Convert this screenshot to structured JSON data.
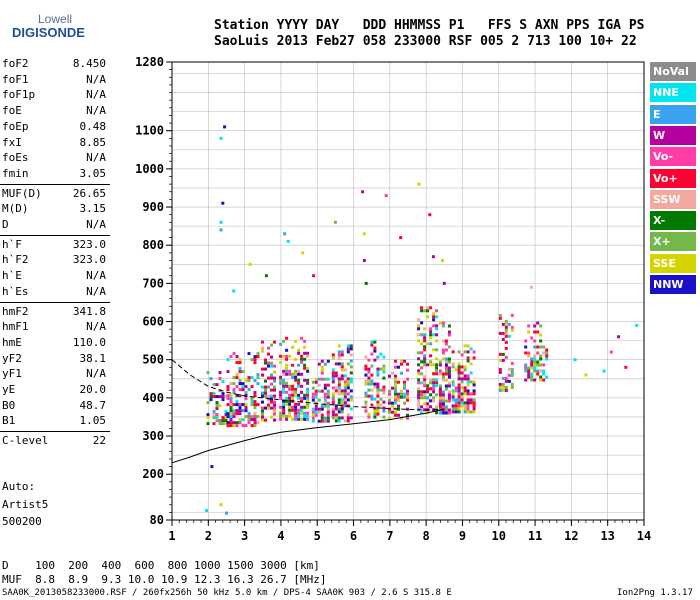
{
  "logo": {
    "line1": "Lowell",
    "line2": "DIGISONDE"
  },
  "header": {
    "line1": "Station YYYY DAY   DDD HHMMSS P1   FFS S AXN PPS IGA PS",
    "line2": "SaoLuis 2013 Feb27 058 233000 RSF 005 2 713 100 10+ 22"
  },
  "params": [
    {
      "name": "foF2",
      "value": "8.450"
    },
    {
      "name": "foF1",
      "value": "N/A"
    },
    {
      "name": "foF1p",
      "value": "N/A"
    },
    {
      "name": "foE",
      "value": "N/A"
    },
    {
      "name": "foEp",
      "value": "0.48"
    },
    {
      "name": "fxI",
      "value": "8.85"
    },
    {
      "name": "foEs",
      "value": "N/A"
    },
    {
      "name": "fmin",
      "value": "3.05"
    },
    {
      "name": "MUF(D)",
      "value": "26.65"
    },
    {
      "name": "M(D)",
      "value": "3.15"
    },
    {
      "name": "D",
      "value": "N/A"
    },
    {
      "name": "h`F",
      "value": "323.0"
    },
    {
      "name": "h`F2",
      "value": "323.0"
    },
    {
      "name": "h`E",
      "value": "N/A"
    },
    {
      "name": "h`Es",
      "value": "N/A"
    },
    {
      "name": "hmF2",
      "value": "341.8"
    },
    {
      "name": "hmF1",
      "value": "N/A"
    },
    {
      "name": "hmE",
      "value": "110.0"
    },
    {
      "name": "yF2",
      "value": "38.1"
    },
    {
      "name": "yF1",
      "value": "N/A"
    },
    {
      "name": "yE",
      "value": "20.0"
    },
    {
      "name": "B0",
      "value": "48.7"
    },
    {
      "name": "B1",
      "value": "1.05"
    },
    {
      "name": "C-level",
      "value": "22"
    }
  ],
  "auto": {
    "line1": "Auto:",
    "line2": "Artist5",
    "line3": "500200"
  },
  "legend": [
    {
      "label": "NoVal",
      "color": "#8c8c8c"
    },
    {
      "label": "NNE",
      "color": "#00e5ee"
    },
    {
      "label": "E",
      "color": "#3aa3f0"
    },
    {
      "label": "W",
      "color": "#b4009e"
    },
    {
      "label": "Vo-",
      "color": "#ff3ca8"
    },
    {
      "label": "Vo+",
      "color": "#ff0033"
    },
    {
      "label": "SSW",
      "color": "#f4a9a0"
    },
    {
      "label": "X-",
      "color": "#007a00"
    },
    {
      "label": "X+",
      "color": "#74b84a"
    },
    {
      "label": "SSE",
      "color": "#d4d400"
    },
    {
      "label": "NNW",
      "color": "#1a10c8"
    }
  ],
  "muf_table": {
    "line1": "D    100  200  400  600  800 1000 1500 3000 [km]",
    "line2": "MUF  8.8  8.9  9.3 10.0 10.9 12.3 16.3 26.7 [MHz]"
  },
  "footer": {
    "left": "SAA0K_2013058233000.RSF / 260fx256h 50 kHz 5.0 km / DPS-4 SAA0K 903 / 2.6 S 315.8 E",
    "right": "Ion2Png 1.3.17"
  },
  "chart_data": {
    "type": "scatter",
    "xlim": [
      1,
      14
    ],
    "ylim": [
      80,
      1280
    ],
    "x_ticks": [
      "1",
      "2",
      "3",
      "4",
      "5",
      "6",
      "7",
      "8",
      "9",
      "10",
      "11",
      "12",
      "13",
      "14"
    ],
    "y_ticks": [
      "80",
      "200",
      "300",
      "400",
      "500",
      "600",
      "700",
      "800",
      "900",
      "1000",
      "1100",
      "1280"
    ],
    "grid": true,
    "echo_columns": [
      {
        "x_range": [
          1.95,
          2.45
        ],
        "h_range": [
          330,
          470
        ],
        "density": 0.55
      },
      {
        "x_range": [
          2.5,
          3.35
        ],
        "h_range": [
          330,
          520
        ],
        "density": 0.65
      },
      {
        "x_range": [
          3.45,
          3.85
        ],
        "h_range": [
          340,
          550
        ],
        "density": 0.75
      },
      {
        "x_range": [
          3.95,
          4.75
        ],
        "h_range": [
          340,
          560
        ],
        "density": 0.75
      },
      {
        "x_range": [
          4.85,
          5.3
        ],
        "h_range": [
          340,
          500
        ],
        "density": 0.7
      },
      {
        "x_range": [
          5.4,
          5.9
        ],
        "h_range": [
          340,
          540
        ],
        "density": 0.7
      },
      {
        "x_range": [
          6.3,
          6.8
        ],
        "h_range": [
          350,
          550
        ],
        "density": 0.65
      },
      {
        "x_range": [
          6.95,
          7.5
        ],
        "h_range": [
          350,
          500
        ],
        "density": 0.6
      },
      {
        "x_range": [
          7.75,
          8.3
        ],
        "h_range": [
          360,
          640
        ],
        "density": 0.75
      },
      {
        "x_range": [
          8.35,
          8.6
        ],
        "h_range": [
          360,
          600
        ],
        "density": 0.7
      },
      {
        "x_range": [
          8.7,
          9.3
        ],
        "h_range": [
          360,
          540
        ],
        "density": 0.7
      },
      {
        "x_range": [
          10.0,
          10.4
        ],
        "h_range": [
          420,
          620
        ],
        "density": 0.55
      },
      {
        "x_range": [
          10.7,
          11.35
        ],
        "h_range": [
          450,
          600
        ],
        "density": 0.55
      }
    ],
    "scattered_points": [
      {
        "x": 2.45,
        "y": 1110,
        "label": "NNW"
      },
      {
        "x": 2.35,
        "y": 1080,
        "label": "NNE"
      },
      {
        "x": 2.4,
        "y": 910,
        "label": "NNW"
      },
      {
        "x": 2.35,
        "y": 860,
        "label": "NNE"
      },
      {
        "x": 2.35,
        "y": 840,
        "label": "E"
      },
      {
        "x": 2.7,
        "y": 680,
        "label": "NNE"
      },
      {
        "x": 3.15,
        "y": 750,
        "label": "SSE"
      },
      {
        "x": 3.6,
        "y": 720,
        "label": "X-"
      },
      {
        "x": 4.1,
        "y": 830,
        "label": "E"
      },
      {
        "x": 4.2,
        "y": 810,
        "label": "NNE"
      },
      {
        "x": 4.6,
        "y": 780,
        "label": "SSE"
      },
      {
        "x": 4.9,
        "y": 720,
        "label": "Vo+"
      },
      {
        "x": 5.5,
        "y": 860,
        "label": "X+"
      },
      {
        "x": 6.25,
        "y": 940,
        "label": "W"
      },
      {
        "x": 6.3,
        "y": 830,
        "label": "SSE"
      },
      {
        "x": 6.3,
        "y": 760,
        "label": "W"
      },
      {
        "x": 6.35,
        "y": 700,
        "label": "X-"
      },
      {
        "x": 6.9,
        "y": 930,
        "label": "Vo-"
      },
      {
        "x": 7.3,
        "y": 820,
        "label": "Vo+"
      },
      {
        "x": 7.8,
        "y": 960,
        "label": "SSE"
      },
      {
        "x": 8.1,
        "y": 880,
        "label": "Vo+"
      },
      {
        "x": 8.2,
        "y": 770,
        "label": "W"
      },
      {
        "x": 8.45,
        "y": 760,
        "label": "SSE"
      },
      {
        "x": 8.5,
        "y": 700,
        "label": "W"
      },
      {
        "x": 10.9,
        "y": 690,
        "label": "SSW"
      },
      {
        "x": 12.1,
        "y": 500,
        "label": "NNE"
      },
      {
        "x": 12.4,
        "y": 460,
        "label": "SSE"
      },
      {
        "x": 12.9,
        "y": 470,
        "label": "NNE"
      },
      {
        "x": 13.1,
        "y": 520,
        "label": "Vo-"
      },
      {
        "x": 13.3,
        "y": 560,
        "label": "W"
      },
      {
        "x": 13.5,
        "y": 480,
        "label": "Vo+"
      },
      {
        "x": 13.8,
        "y": 590,
        "label": "NNE"
      },
      {
        "x": 2.1,
        "y": 220,
        "label": "NNW"
      },
      {
        "x": 1.95,
        "y": 105,
        "label": "NNE"
      },
      {
        "x": 2.35,
        "y": 120,
        "label": "SSE"
      },
      {
        "x": 2.5,
        "y": 98,
        "label": "E"
      }
    ],
    "solid_trace": [
      [
        1,
        230
      ],
      [
        1.5,
        245
      ],
      [
        2,
        262
      ],
      [
        2.5,
        275
      ],
      [
        3,
        288
      ],
      [
        3.5,
        300
      ],
      [
        4,
        310
      ],
      [
        5,
        322
      ],
      [
        6,
        332
      ],
      [
        7,
        343
      ],
      [
        8,
        360
      ],
      [
        8.5,
        370
      ]
    ],
    "dashed_trace": [
      [
        1,
        500
      ],
      [
        1.5,
        460
      ],
      [
        2,
        430
      ],
      [
        2.5,
        415
      ],
      [
        3,
        405
      ],
      [
        4,
        395
      ],
      [
        5,
        385
      ],
      [
        6,
        377
      ],
      [
        7,
        372
      ],
      [
        8,
        368
      ],
      [
        8.45,
        370
      ]
    ]
  }
}
